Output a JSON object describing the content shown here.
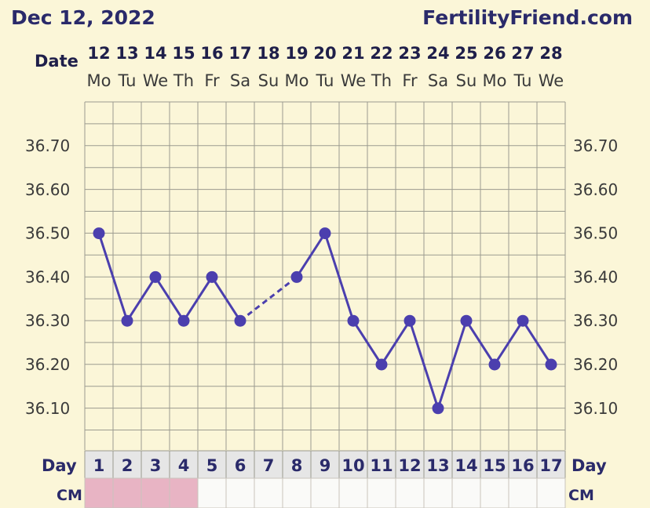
{
  "header": {
    "date_title": "Dec 12, 2022",
    "site": "FertilityFriend.com",
    "date_row_label": "Date",
    "day_row_label": "Day",
    "cm_row_label": "CM"
  },
  "colors": {
    "line": "#4b3fae",
    "background": "#fbf6d8",
    "day_row": "#e6e6e6",
    "cm_pink": "#e8b4c4",
    "cm_white": "#fafaf8",
    "grid": "#9b9b8f"
  },
  "chart_data": {
    "type": "line",
    "dates": [
      "12",
      "13",
      "14",
      "15",
      "16",
      "17",
      "18",
      "19",
      "20",
      "21",
      "22",
      "23",
      "24",
      "25",
      "26",
      "27",
      "28"
    ],
    "weekdays": [
      "Mo",
      "Tu",
      "We",
      "Th",
      "Fr",
      "Sa",
      "Su",
      "Mo",
      "Tu",
      "We",
      "Th",
      "Fr",
      "Sa",
      "Su",
      "Mo",
      "Tu",
      "We"
    ],
    "days": [
      "1",
      "2",
      "3",
      "4",
      "5",
      "6",
      "7",
      "8",
      "9",
      "10",
      "11",
      "12",
      "13",
      "14",
      "15",
      "16",
      "17"
    ],
    "values": [
      36.5,
      36.3,
      36.4,
      36.3,
      36.4,
      36.3,
      null,
      36.4,
      36.5,
      36.3,
      36.2,
      36.3,
      36.1,
      36.3,
      36.2,
      36.3,
      36.2
    ],
    "dashed_gap_between": [
      6,
      8
    ],
    "yticks": [
      "36.70",
      "36.60",
      "36.50",
      "36.40",
      "36.30",
      "36.20",
      "36.10"
    ],
    "ylim": [
      36.0,
      36.8
    ],
    "cm": [
      "pink",
      "pink",
      "pink",
      "pink",
      "white",
      "white",
      "white",
      "white",
      "white",
      "white",
      "white",
      "white",
      "white",
      "white",
      "white",
      "white",
      "white"
    ],
    "grid": true
  }
}
